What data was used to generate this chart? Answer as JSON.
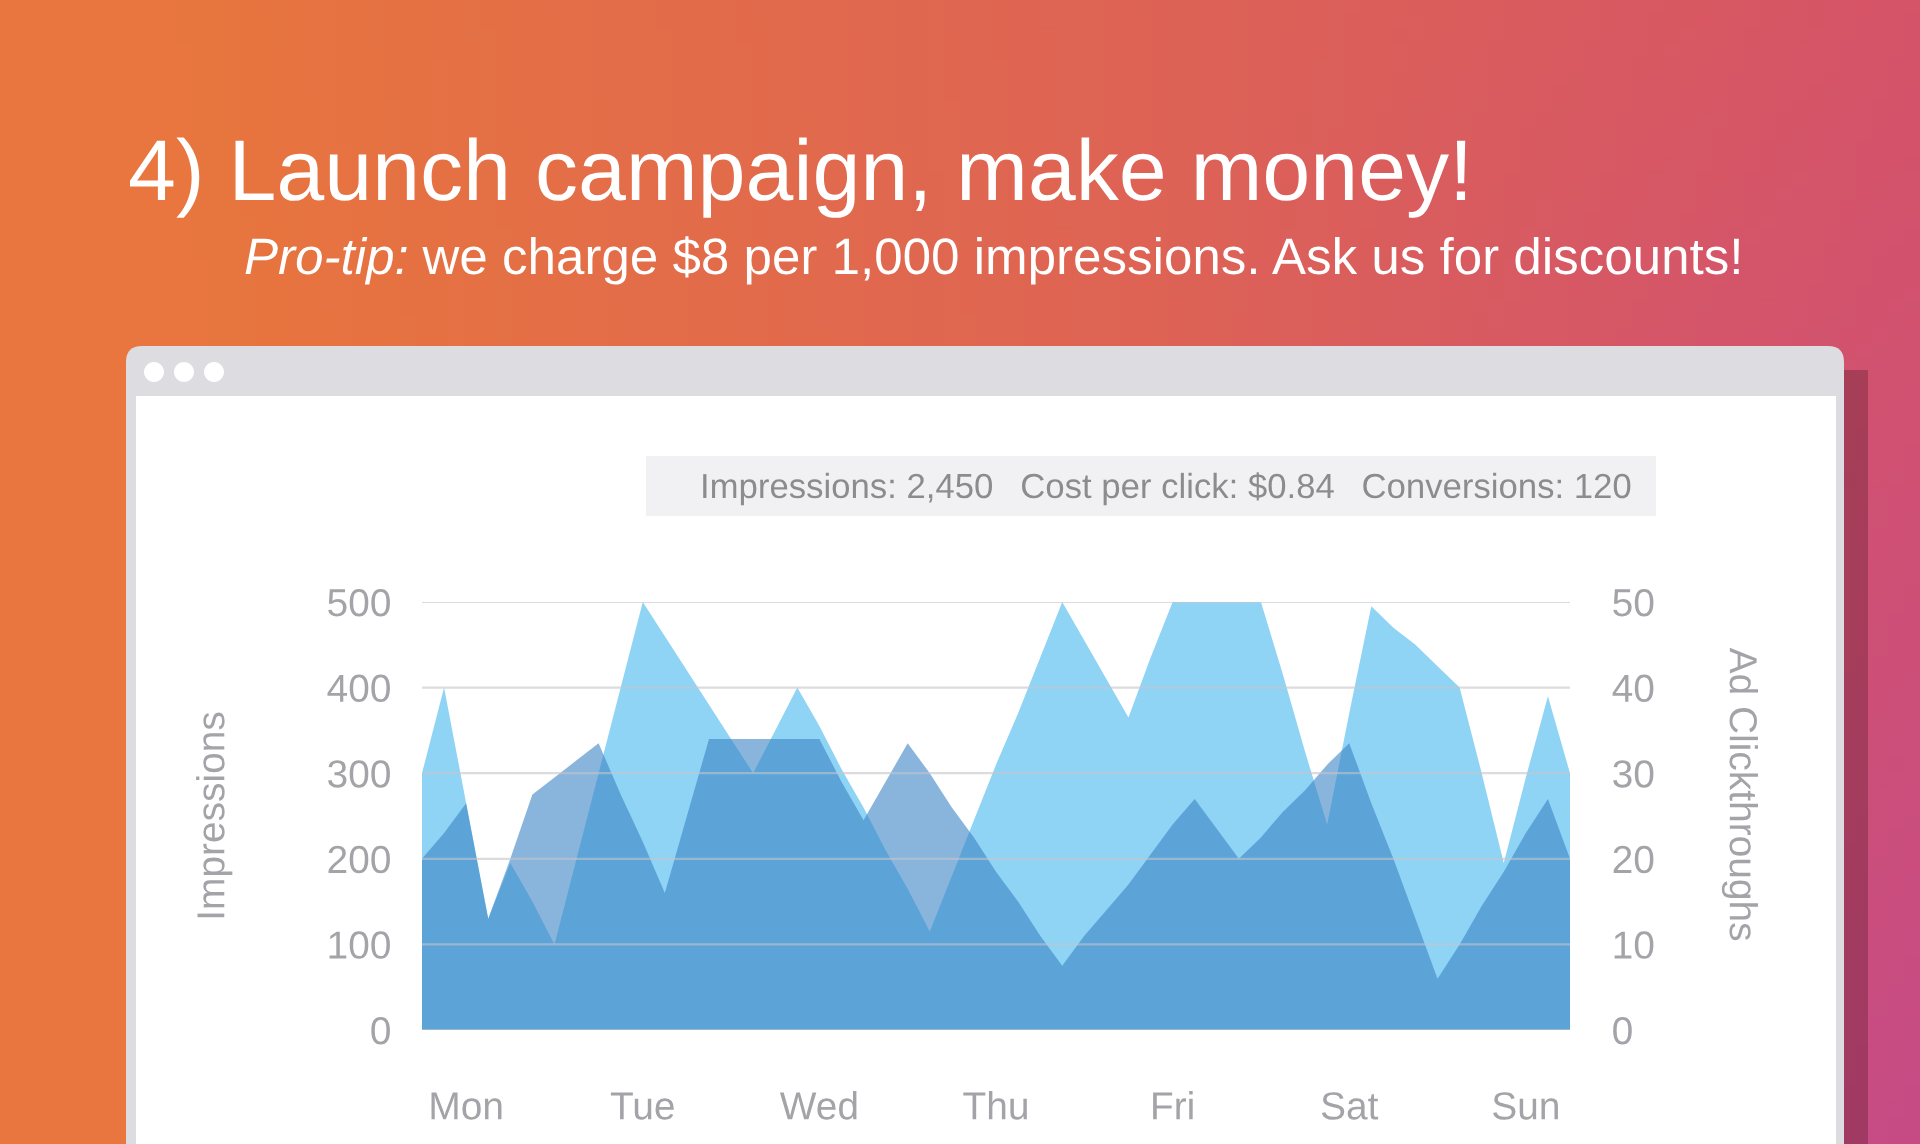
{
  "chart_data": {
    "type": "area",
    "title": "4) Launch campaign, make money!",
    "subtitle": "Pro-tip: we charge $8 per 1,000 impressions. Ask us for discounts!",
    "annotations": [
      "Impressions: 2,450",
      "Cost per click: $0.84",
      "Conversions: 120"
    ],
    "ylabel": "Impressions",
    "y2label": "Ad Clickthroughs",
    "categories": [
      null,
      null,
      "Mon",
      null,
      null,
      null,
      null,
      null,
      null,
      null,
      "Tue",
      null,
      null,
      null,
      null,
      null,
      null,
      null,
      "Wed",
      null,
      null,
      null,
      null,
      null,
      null,
      null,
      "Thu",
      null,
      null,
      null,
      null,
      null,
      null,
      null,
      "Fri",
      null,
      null,
      null,
      null,
      null,
      null,
      null,
      "Sat",
      null,
      null,
      null,
      null,
      null,
      null,
      null,
      "Sun",
      null,
      null
    ],
    "ylim": [
      0,
      500
    ],
    "yticks": [
      0,
      100,
      200,
      300,
      400,
      500
    ],
    "y2lim": [
      0,
      50
    ],
    "y2ticks": [
      0,
      10,
      20,
      30,
      40,
      50
    ],
    "grid": "y",
    "series": [
      {
        "color": "#8fd4f5",
        "values": [
          300,
          400,
          265,
          130,
          195,
          150,
          100,
          200,
          300,
          400,
          500,
          460,
          420,
          380,
          340,
          300,
          350,
          400,
          355,
          305,
          260,
          210,
          165,
          115,
          180,
          245,
          310,
          370,
          435,
          500,
          455,
          410,
          365,
          435,
          500,
          500,
          500,
          500,
          500,
          415,
          325,
          240,
          370,
          495,
          470,
          450,
          425,
          400,
          300,
          195,
          295,
          390,
          300
        ]
      },
      {
        "color": "#3b84c5",
        "axis": "y2",
        "values": [
          20,
          23,
          26.5,
          13,
          20,
          27.5,
          29.5,
          31.5,
          33.5,
          27.5,
          22,
          16,
          25,
          34,
          34,
          34,
          34,
          34,
          34,
          29,
          24.5,
          29,
          33.5,
          30,
          26,
          22.5,
          18.5,
          15,
          11,
          7.5,
          11,
          14,
          17,
          20.5,
          24,
          27,
          23.5,
          20,
          22.5,
          25.5,
          28,
          31,
          33.5,
          26.5,
          20,
          13,
          6,
          10,
          14.5,
          18.5,
          23,
          27,
          20
        ]
      }
    ]
  }
}
